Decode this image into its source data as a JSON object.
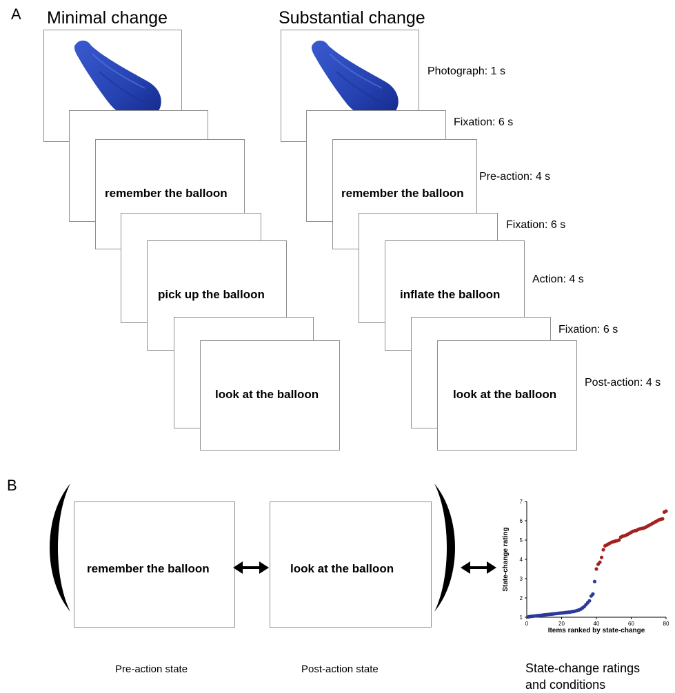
{
  "panel_a": {
    "letter": "A",
    "col_minimal_title": "Minimal change",
    "col_substantial_title": "Substantial change",
    "minimal_texts": {
      "pre_action": "remember the balloon",
      "action": "pick up the balloon",
      "post_action": "look at the balloon"
    },
    "substantial_texts": {
      "pre_action": "remember the balloon",
      "action": "inflate the balloon",
      "post_action": "look at the balloon"
    },
    "timings": {
      "photograph": "Photograph: 1 s",
      "fixation_1": "Fixation: 6 s",
      "pre_action": "Pre-action: 4 s",
      "fixation_2": "Fixation: 6 s",
      "action": "Action: 4 s",
      "fixation_3": "Fixation: 6 s",
      "post_action": "Post-action: 4 s"
    },
    "balloon_color": "#2a49b8"
  },
  "panel_b": {
    "letter": "B",
    "pre_text": "remember the balloon",
    "post_text": "look at the balloon",
    "pre_label": "Pre-action state",
    "post_label": "Post-action state",
    "ratings_label_line1": "State-change ratings",
    "ratings_label_line2": "and conditions"
  },
  "chart_data": {
    "type": "scatter",
    "xlabel": "Items ranked by state-change",
    "ylabel": "State-change rating",
    "xlim": [
      0,
      80
    ],
    "ylim": [
      1,
      7
    ],
    "xticks": [
      0,
      20,
      40,
      60,
      80
    ],
    "yticks": [
      1,
      2,
      3,
      4,
      5,
      6,
      7
    ],
    "grid": false,
    "series": [
      {
        "color": "#2b3a9a",
        "points": [
          [
            1,
            1.02
          ],
          [
            2,
            1.04
          ],
          [
            3,
            1.05
          ],
          [
            4,
            1.06
          ],
          [
            5,
            1.07
          ],
          [
            6,
            1.08
          ],
          [
            7,
            1.09
          ],
          [
            8,
            1.1
          ],
          [
            9,
            1.11
          ],
          [
            10,
            1.12
          ],
          [
            11,
            1.13
          ],
          [
            12,
            1.14
          ],
          [
            13,
            1.15
          ],
          [
            14,
            1.16
          ],
          [
            15,
            1.17
          ],
          [
            16,
            1.18
          ],
          [
            17,
            1.19
          ],
          [
            18,
            1.2
          ],
          [
            19,
            1.21
          ],
          [
            20,
            1.22
          ],
          [
            21,
            1.23
          ],
          [
            22,
            1.24
          ],
          [
            23,
            1.25
          ],
          [
            24,
            1.26
          ],
          [
            25,
            1.27
          ],
          [
            26,
            1.29
          ],
          [
            27,
            1.3
          ],
          [
            28,
            1.32
          ],
          [
            29,
            1.35
          ],
          [
            30,
            1.38
          ],
          [
            31,
            1.42
          ],
          [
            32,
            1.48
          ],
          [
            33,
            1.55
          ],
          [
            34,
            1.65
          ],
          [
            35,
            1.75
          ],
          [
            36,
            1.85
          ],
          [
            37,
            2.1
          ],
          [
            38,
            2.2
          ],
          [
            39,
            2.85
          ]
        ]
      },
      {
        "color": "#a32020",
        "points": [
          [
            40,
            3.5
          ],
          [
            41,
            3.75
          ],
          [
            42,
            3.85
          ],
          [
            43,
            4.1
          ],
          [
            44,
            4.5
          ],
          [
            45,
            4.7
          ],
          [
            46,
            4.75
          ],
          [
            47,
            4.8
          ],
          [
            48,
            4.85
          ],
          [
            49,
            4.9
          ],
          [
            50,
            4.92
          ],
          [
            51,
            4.95
          ],
          [
            52,
            4.97
          ],
          [
            53,
            5.0
          ],
          [
            54,
            5.15
          ],
          [
            55,
            5.2
          ],
          [
            56,
            5.22
          ],
          [
            57,
            5.25
          ],
          [
            58,
            5.3
          ],
          [
            59,
            5.35
          ],
          [
            60,
            5.4
          ],
          [
            61,
            5.45
          ],
          [
            62,
            5.48
          ],
          [
            63,
            5.5
          ],
          [
            64,
            5.55
          ],
          [
            65,
            5.58
          ],
          [
            66,
            5.6
          ],
          [
            67,
            5.62
          ],
          [
            68,
            5.65
          ],
          [
            69,
            5.7
          ],
          [
            70,
            5.75
          ],
          [
            71,
            5.8
          ],
          [
            72,
            5.85
          ],
          [
            73,
            5.9
          ],
          [
            74,
            5.95
          ],
          [
            75,
            6.0
          ],
          [
            76,
            6.05
          ],
          [
            77,
            6.08
          ],
          [
            78,
            6.1
          ],
          [
            79,
            6.45
          ],
          [
            80,
            6.5
          ]
        ]
      }
    ]
  }
}
